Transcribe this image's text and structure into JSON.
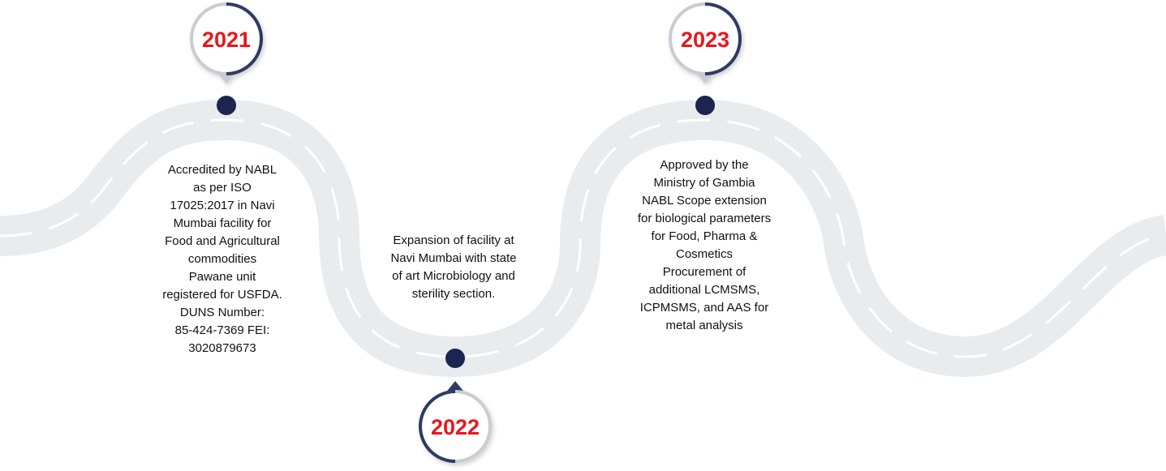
{
  "colors": {
    "road": "#e9ecef",
    "road_dash": "#ffffff",
    "dot": "#1b2551",
    "badge_ring_dark": "#2f3a63",
    "badge_ring_light": "#c9ccd3",
    "year_text": "#e8161c"
  },
  "milestones": [
    {
      "year": "2021",
      "lines": [
        "Accredited by NABL",
        "as per ISO",
        "17025:2017 in Navi",
        "Mumbai facility for",
        "Food and Agricultural",
        "commodities",
        "Pawane unit",
        "registered for USFDA.",
        "DUNS Number:",
        "85-424-7369 FEI:",
        "3020879673"
      ]
    },
    {
      "year": "2022",
      "lines": [
        "Expansion of facility at",
        "Navi Mumbai with state",
        "of art Microbiology and",
        "sterility section."
      ]
    },
    {
      "year": "2023",
      "lines": [
        "Approved by the",
        "Ministry of Gambia",
        "NABL Scope extension",
        "for biological parameters",
        "for Food, Pharma &",
        "Cosmetics",
        "Procurement of",
        "additional LCMSMS,",
        "ICPMSMS, and AAS for",
        "metal analysis"
      ]
    }
  ]
}
